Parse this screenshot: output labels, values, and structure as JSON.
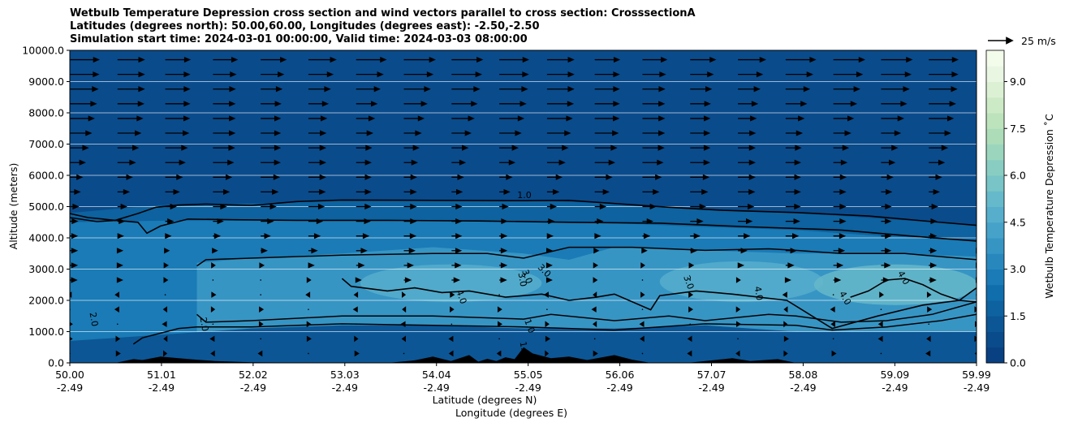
{
  "chart_data": {
    "type": "contour",
    "title_lines": [
      "Wetbulb Temperature Depression cross section and wind vectors parallel to cross section: CrosssectionA",
      "Latitudes (degrees north): 50.00,60.00, Longitudes (degrees east): -2.50,-2.50",
      "Simulation start time: 2024-03-01 00:00:00, Valid time: 2024-03-03 08:00:00"
    ],
    "ylabel": "Altitude (meters)",
    "xlabel_lat": "Latitude (degrees N)",
    "xlabel_lon": "Longitude (degrees E)",
    "xlim": [
      50.0,
      59.99
    ],
    "ylim": [
      0,
      10000
    ],
    "y_ticks": [
      0,
      1000,
      2000,
      3000,
      4000,
      5000,
      6000,
      7000,
      8000,
      9000,
      10000
    ],
    "y_tick_labels": [
      "0.0",
      "1000.0",
      "2000.0",
      "3000.0",
      "4000.0",
      "5000.0",
      "6000.0",
      "7000.0",
      "8000.0",
      "9000.0",
      "10000.0"
    ],
    "x_ticks": [
      50.0,
      51.01,
      52.02,
      53.03,
      54.04,
      55.05,
      56.06,
      57.07,
      58.08,
      59.09,
      59.99
    ],
    "x_tick_labels_lat": [
      "50.00",
      "51.01",
      "52.02",
      "53.03",
      "54.04",
      "55.05",
      "56.06",
      "57.07",
      "58.08",
      "59.09",
      "59.99"
    ],
    "x_tick_labels_lon": [
      "-2.49",
      "-2.49",
      "-2.49",
      "-2.49",
      "-2.49",
      "-2.49",
      "-2.49",
      "-2.49",
      "-2.49",
      "-2.49",
      "-2.49"
    ],
    "horizontal_gridlines": true,
    "colorbar": {
      "label": "Wetbulb Temperature Depression ˚C",
      "range": [
        0,
        10
      ],
      "tick_values": [
        0,
        1.5,
        3,
        4.5,
        6,
        7.5,
        9
      ],
      "tick_labels": [
        "0.0",
        "1.5",
        "3.0",
        "4.5",
        "6.0",
        "7.5",
        "9.0"
      ],
      "levels": 20,
      "colors": [
        "#084081",
        "#0a4b8b",
        "#0c5695",
        "#0d629f",
        "#106ead",
        "#1a7bb6",
        "#2888bd",
        "#3795c4",
        "#46a2c9",
        "#56aecc",
        "#66b9ca",
        "#78c4c6",
        "#89cdc2",
        "#9bd5bd",
        "#acdcb8",
        "#bde3bd",
        "#cdeac6",
        "#dcf1d4",
        "#e9f6e2",
        "#f3fbeb"
      ]
    },
    "contour_lines": [
      {
        "value": 1.0,
        "label": "1.0",
        "lat": [
          50.0,
          50.2,
          50.5,
          50.75,
          50.95,
          51.2,
          51.5,
          52.0,
          52.5,
          53.0,
          54.0,
          55.0,
          55.5,
          56.0,
          56.6,
          57.2,
          58.0,
          58.8,
          59.5,
          59.99
        ],
        "alt": [
          4780,
          4650,
          4560,
          4780,
          4980,
          5050,
          5080,
          5040,
          5160,
          5210,
          5200,
          5190,
          5200,
          5100,
          4980,
          4880,
          4810,
          4700,
          4520,
          4400
        ]
      },
      {
        "value": 1.5,
        "label": "",
        "lat": [
          50.0,
          50.3,
          50.5,
          50.75,
          50.85,
          51.0,
          51.3,
          51.8,
          52.5,
          53.5,
          54.5,
          55.5,
          56.5,
          57.5,
          58.5,
          59.3,
          59.99
        ],
        "alt": [
          4650,
          4520,
          4560,
          4500,
          4150,
          4380,
          4600,
          4580,
          4560,
          4560,
          4540,
          4500,
          4470,
          4350,
          4250,
          4050,
          3900
        ]
      },
      {
        "value": 3.0,
        "label": "3.0",
        "lat": [
          53.0,
          53.1,
          53.5,
          53.8,
          54.1,
          54.4,
          54.8,
          55.0,
          55.2,
          55.5,
          55.8,
          56.0,
          56.4,
          56.5,
          56.9,
          57.3,
          57.9,
          58.4,
          58.9,
          59.4,
          59.8,
          59.99
        ],
        "alt": [
          2700,
          2450,
          2300,
          2400,
          2250,
          2300,
          2100,
          2150,
          2200,
          2000,
          2100,
          2200,
          1700,
          2150,
          2300,
          2200,
          2000,
          1100,
          1500,
          1850,
          2000,
          2400
        ]
      },
      {
        "value": 4.0,
        "label": "4.0",
        "lat": [
          58.6,
          58.8,
          59.0,
          59.2,
          59.4,
          59.6,
          59.8,
          59.99
        ],
        "alt": [
          2100,
          2300,
          2650,
          2700,
          2500,
          2200,
          2000,
          1950
        ]
      }
    ],
    "contour_labels": [
      "1.0",
      "2.0",
      "2.0",
      "1.0",
      "3.0",
      "3.0",
      "3.0",
      "4.0",
      "4.0",
      "4.0",
      "4.0",
      "1.0",
      "3.0"
    ],
    "wind_vectors": {
      "unit_label": "25 m/s",
      "reference_speed": 25,
      "description": "Mostly northward (positive) vectors increasing in magnitude with altitude; weak and mixed near the surface"
    },
    "terrain": {
      "lat": [
        50.0,
        50.3,
        50.5,
        50.6,
        50.7,
        50.8,
        51.0,
        51.2,
        51.4,
        51.6,
        51.8,
        52.0,
        52.5,
        53.0,
        53.5,
        53.8,
        54.0,
        54.2,
        54.4,
        54.5,
        54.6,
        54.7,
        54.8,
        54.9,
        55.0,
        55.1,
        55.3,
        55.5,
        55.7,
        56.0,
        56.2,
        56.4,
        56.8,
        57.0,
        57.3,
        57.5,
        57.8,
        58.0,
        58.5,
        59.0,
        59.5,
        59.99
      ],
      "alt": [
        0,
        0,
        0,
        60,
        120,
        90,
        200,
        150,
        100,
        60,
        40,
        20,
        10,
        0,
        0,
        80,
        200,
        60,
        250,
        40,
        130,
        60,
        180,
        120,
        500,
        300,
        150,
        200,
        90,
        250,
        100,
        0,
        0,
        60,
        150,
        60,
        120,
        0,
        0,
        0,
        0,
        0
      ]
    }
  }
}
